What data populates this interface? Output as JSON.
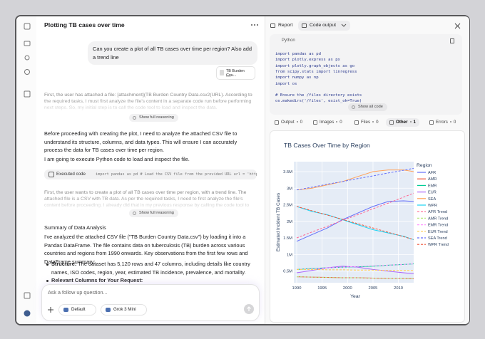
{
  "header": {
    "title": "Plotting TB cases over time"
  },
  "user_message": {
    "text": "Can you create a plot of all TB cases over time per region? Also add a trend line",
    "attachment": {
      "name": "TB Burden Cou...",
      "type": "csv"
    }
  },
  "reasoning": [
    {
      "text": "First, the user has attached a file: [attachment](TB Burden Country Data.csv2(URL). According to the required tasks, I must first analyze the file's content in a separate code run before performing next steps. So, my initial step is to call the code tool to load and inspect the data.",
      "toggle": "Show full reasoning"
    },
    {
      "text": "First, the user wants to create a plot of all TB cases over time per region, with a trend line. The attached file is a CSV with TB data. As per the required tasks, I need to first analyze the file's content before proceeding. I already did that in my previous response by calling the code tool to load and inspect the file.",
      "toggle": "Show full reasoning"
    }
  ],
  "response": {
    "paragraphs": [
      "Before proceeding with creating the plot, I need to analyze the attached CSV file to understand its structure, columns, and data types. This will ensure I can accurately process the data for TB cases over time per region.",
      "I am going to execute Python code to load and inspect the file."
    ],
    "executed": {
      "label": "Executed code",
      "code": "import pandas as pd # Load the CSV file from the provided URL url = 'https://..."
    },
    "heading": "Summary of Data Analysis",
    "summary": "I've analyzed the attached CSV file (\"TB Burden Country Data.csv\") by loading it into a Pandas DataFrame. The file contains data on tuberculosis (TB) burden across various countries and regions from 1990 onwards. Key observations from the first few rows and DataFrame summary:",
    "bullets": [
      {
        "label": "Structure:",
        "text": "The dataset has 5,120 rows and 47 columns, including details like country names, ISO codes, region, year, estimated TB incidence, prevalence, and mortality."
      },
      {
        "label": "Relevant Columns for Your Request:"
      }
    ]
  },
  "composer": {
    "placeholder": "Ask a follow up question...",
    "mode": "Default",
    "model": "Grok 3 Mini"
  },
  "panel": {
    "tabs": [
      "Report",
      "Code output"
    ],
    "language": "Python",
    "code": [
      "import pandas as pd",
      "import plotly.express as px",
      "import plotly.graph_objects as go",
      "from scipy.stats import linregress",
      "import numpy as np",
      "import os",
      "# Ensure the /files directory exists",
      "os.makedirs('/files', exist_ok=True)"
    ],
    "show_code": "Show all code",
    "output_tabs": [
      {
        "label": "Output",
        "count": 0
      },
      {
        "label": "Images",
        "count": 0
      },
      {
        "label": "Files",
        "count": 0
      },
      {
        "label": "Other",
        "count": 1
      },
      {
        "label": "Errors",
        "count": 0
      }
    ]
  },
  "chart_data": {
    "type": "line",
    "title": "TB Cases Over Time by Region",
    "xlabel": "Year",
    "ylabel": "Estimated Incident TB Cases",
    "legend_title": "Region",
    "x": [
      1990,
      1993,
      1996,
      1999,
      2002,
      2005,
      2008,
      2011,
      2013
    ],
    "xlim": [
      1990,
      2013
    ],
    "xticks": [
      1990,
      1995,
      2000,
      2005,
      2010
    ],
    "ylim": [
      150000,
      3800000
    ],
    "yticks": [
      {
        "value": 500000,
        "label": "0.5M"
      },
      {
        "value": 1000000,
        "label": "1M"
      },
      {
        "value": 1500000,
        "label": "1.5M"
      },
      {
        "value": 2000000,
        "label": "2M"
      },
      {
        "value": 2500000,
        "label": "2.5M"
      },
      {
        "value": 3000000,
        "label": "3M"
      },
      {
        "value": 3500000,
        "label": "3.5M"
      }
    ],
    "grid": true,
    "series": [
      {
        "name": "AFR",
        "color": "#636efa",
        "dash": false,
        "values": [
          1400000,
          1600000,
          1800000,
          2050000,
          2250000,
          2450000,
          2600000,
          2620000,
          2600000
        ]
      },
      {
        "name": "AMR",
        "color": "#ef553b",
        "dash": false,
        "values": [
          330000,
          320000,
          310000,
          300000,
          300000,
          290000,
          280000,
          280000,
          270000
        ]
      },
      {
        "name": "EMR",
        "color": "#00cc96",
        "dash": false,
        "values": [
          550000,
          580000,
          600000,
          620000,
          630000,
          650000,
          680000,
          700000,
          720000
        ]
      },
      {
        "name": "EUR",
        "color": "#ab63fa",
        "dash": false,
        "values": [
          450000,
          520000,
          600000,
          650000,
          620000,
          550000,
          500000,
          450000,
          420000
        ]
      },
      {
        "name": "SEA",
        "color": "#ffa15a",
        "dash": false,
        "values": [
          2950000,
          3000000,
          3100000,
          3200000,
          3350000,
          3500000,
          3550000,
          3550000,
          3500000
        ]
      },
      {
        "name": "WPR",
        "color": "#19d3f3",
        "dash": false,
        "values": [
          2450000,
          2300000,
          2200000,
          2050000,
          1900000,
          1750000,
          1650000,
          1550000,
          1450000
        ]
      },
      {
        "name": "AFR Trend",
        "color": "#ff6692",
        "dash": true,
        "values": [
          1500000,
          1680000,
          1850000,
          2030000,
          2200000,
          2380000,
          2550000,
          2730000,
          2850000
        ]
      },
      {
        "name": "AMR Trend",
        "color": "#b6e880",
        "dash": true,
        "values": [
          330000,
          320000,
          310000,
          300000,
          300000,
          290000,
          280000,
          280000,
          270000
        ]
      },
      {
        "name": "EMR Trend",
        "color": "#ff97ff",
        "dash": true,
        "values": [
          550000,
          570000,
          600000,
          620000,
          640000,
          660000,
          680000,
          700000,
          720000
        ]
      },
      {
        "name": "EUR Trend",
        "color": "#fecb52",
        "dash": true,
        "values": [
          550000,
          550000,
          540000,
          540000,
          530000,
          530000,
          520000,
          520000,
          520000
        ]
      },
      {
        "name": "SEA Trend",
        "color": "#636efa",
        "dash": true,
        "values": [
          2950000,
          3030000,
          3120000,
          3200000,
          3290000,
          3370000,
          3460000,
          3540000,
          3600000
        ]
      },
      {
        "name": "WPR Trend",
        "color": "#ef553b",
        "dash": true,
        "values": [
          2450000,
          2320000,
          2190000,
          2060000,
          1930000,
          1800000,
          1670000,
          1540000,
          1450000
        ]
      }
    ]
  }
}
